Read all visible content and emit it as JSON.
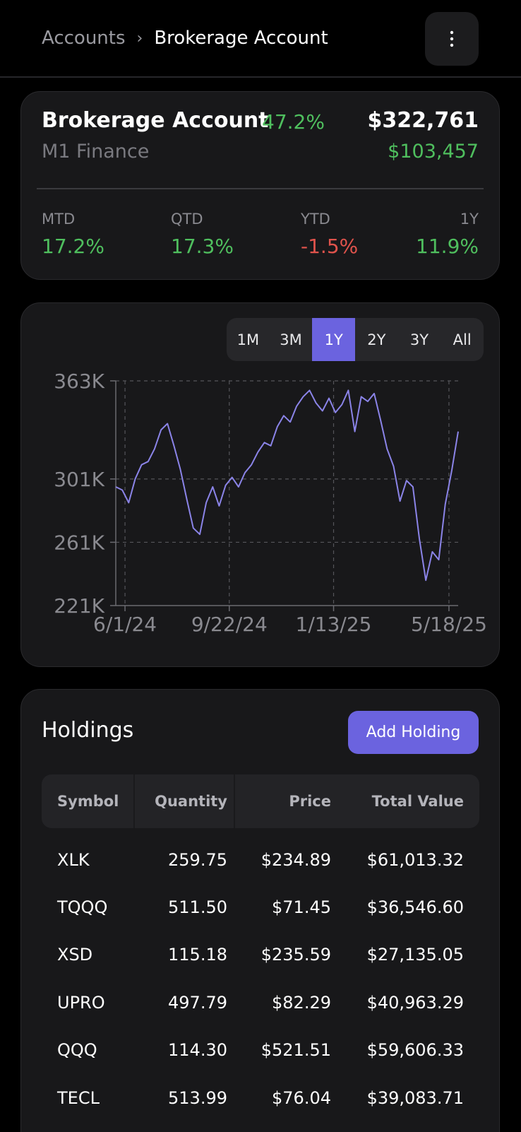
{
  "breadcrumb": {
    "parent": "Accounts",
    "separator": "›",
    "current": "Brokerage Account"
  },
  "menu": {
    "icon": "more-vertical-icon"
  },
  "summary": {
    "name": "Brokerage Account",
    "return_pct": "47.2%",
    "total": "$322,761",
    "broker": "M1 Finance",
    "gain": "$103,457",
    "metrics": [
      {
        "label": "MTD",
        "value": "17.2%",
        "trend": "pos"
      },
      {
        "label": "QTD",
        "value": "17.3%",
        "trend": "pos"
      },
      {
        "label": "YTD",
        "value": "-1.5%",
        "trend": "neg"
      },
      {
        "label": "1Y",
        "value": "11.9%",
        "trend": "pos"
      }
    ]
  },
  "chart": {
    "ranges": [
      "1M",
      "3M",
      "1Y",
      "2Y",
      "3Y",
      "All"
    ],
    "active_range": "1Y"
  },
  "chart_data": {
    "type": "line",
    "title": "",
    "xlabel": "",
    "ylabel": "",
    "x_tick_labels": [
      "6/1/24",
      "9/22/24",
      "1/13/25",
      "5/18/25"
    ],
    "y_tick_labels": [
      "363K",
      "301K",
      "261K",
      "221K"
    ],
    "y_tick_values": [
      363000,
      301000,
      261000,
      221000
    ],
    "ylim": [
      221000,
      363000
    ],
    "grid": true,
    "line_color": "#8b84e8",
    "series": [
      {
        "x": [
          "5/22/24",
          "5/29/24",
          "6/5/24",
          "6/12/24",
          "6/19/24",
          "6/26/24",
          "7/3/24",
          "7/10/24",
          "7/17/24",
          "7/24/24",
          "7/31/24",
          "8/7/24",
          "8/14/24",
          "8/21/24",
          "8/28/24",
          "9/4/24",
          "9/11/24",
          "9/18/24",
          "9/25/24",
          "10/2/24",
          "10/9/24",
          "10/16/24",
          "10/23/24",
          "10/30/24",
          "11/6/24",
          "11/13/24",
          "11/20/24",
          "11/27/24",
          "12/4/24",
          "12/11/24",
          "12/18/24",
          "12/25/24",
          "1/1/25",
          "1/8/25",
          "1/15/25",
          "1/22/25",
          "1/29/25",
          "2/5/25",
          "2/12/25",
          "2/19/25",
          "2/26/25",
          "3/5/25",
          "3/12/25",
          "3/19/25",
          "3/26/25",
          "4/2/25",
          "4/9/25",
          "4/16/25",
          "4/23/25",
          "4/30/25",
          "5/7/25",
          "5/14/25",
          "5/21/25",
          "5/28/25"
        ],
        "values": [
          296000,
          294000,
          286000,
          301000,
          310000,
          312000,
          320000,
          332000,
          336000,
          322000,
          307000,
          288000,
          270000,
          266000,
          286000,
          296000,
          284000,
          297000,
          302000,
          296000,
          305000,
          310000,
          318000,
          324000,
          322000,
          334000,
          341000,
          337000,
          347000,
          353000,
          357000,
          349000,
          344000,
          352000,
          343000,
          348000,
          357000,
          331000,
          353000,
          350000,
          355000,
          338000,
          320000,
          309000,
          287000,
          300000,
          296000,
          263000,
          237000,
          255000,
          250000,
          285000,
          306000,
          331000
        ]
      }
    ]
  },
  "holdings": {
    "title": "Holdings",
    "add_label": "Add Holding",
    "columns": [
      "Symbol",
      "Quantity",
      "Price",
      "Total Value"
    ],
    "rows": [
      {
        "symbol": "XLK",
        "quantity": "259.75",
        "price": "$234.89",
        "total": "$61,013.32"
      },
      {
        "symbol": "TQQQ",
        "quantity": "511.50",
        "price": "$71.45",
        "total": "$36,546.60"
      },
      {
        "symbol": "XSD",
        "quantity": "115.18",
        "price": "$235.59",
        "total": "$27,135.05"
      },
      {
        "symbol": "UPRO",
        "quantity": "497.79",
        "price": "$82.29",
        "total": "$40,963.29"
      },
      {
        "symbol": "QQQ",
        "quantity": "114.30",
        "price": "$521.51",
        "total": "$59,606.33"
      },
      {
        "symbol": "TECL",
        "quantity": "513.99",
        "price": "$76.04",
        "total": "$39,083.71"
      }
    ]
  }
}
